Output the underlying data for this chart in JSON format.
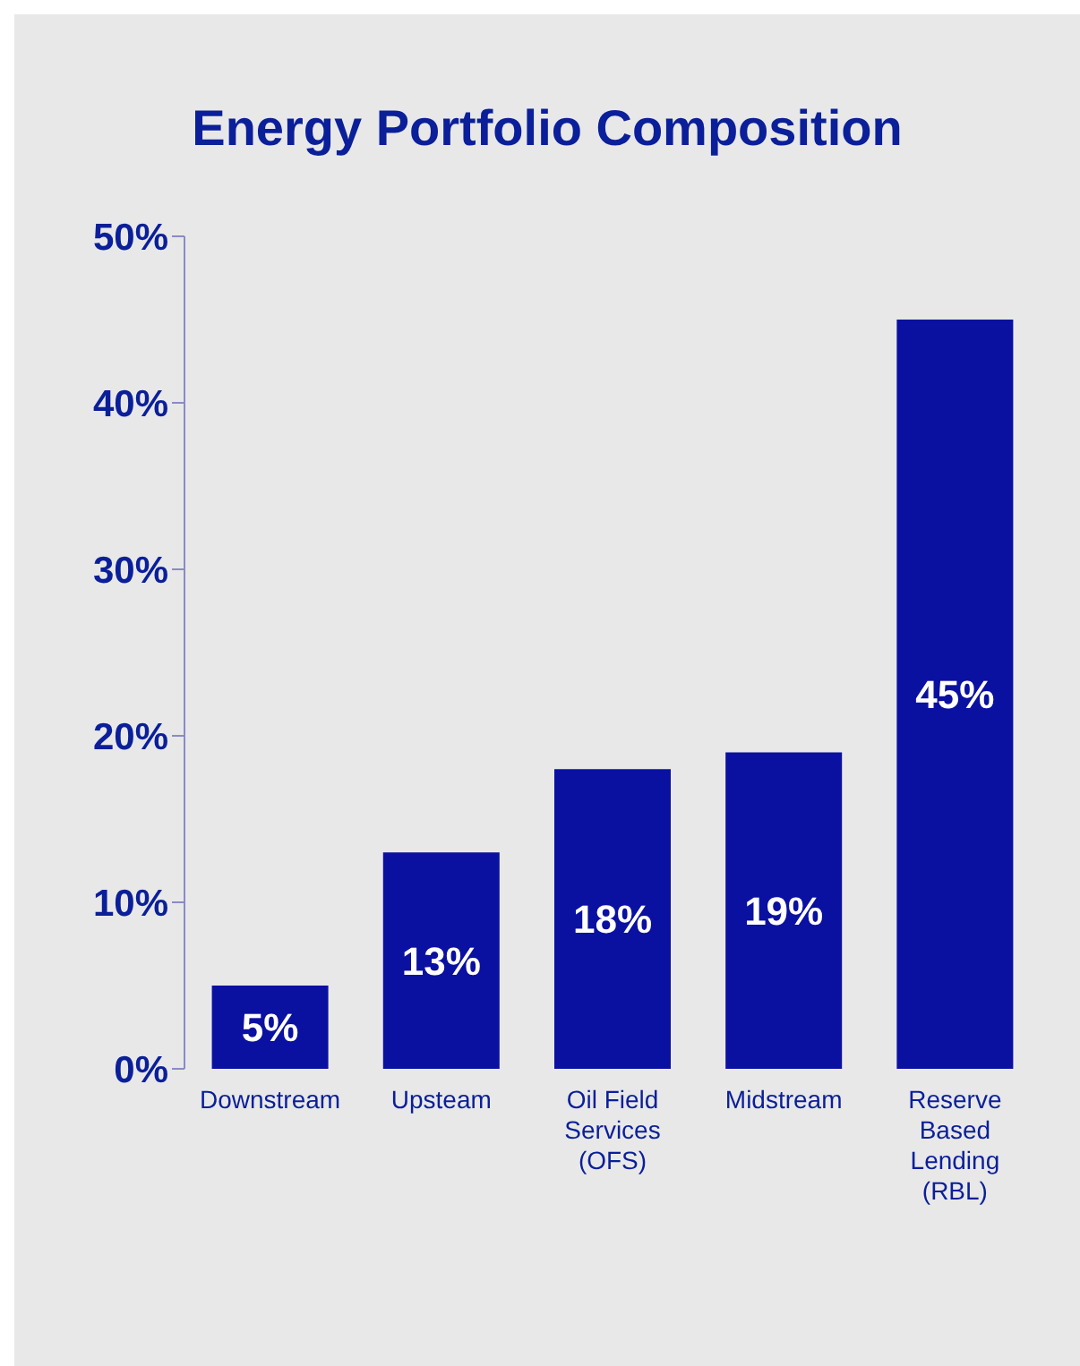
{
  "chart_data": {
    "type": "bar",
    "title": "Energy Portfolio Composition",
    "categories": [
      "Downstream",
      "Upsteam",
      "Oil Field Services (OFS)",
      "Midstream",
      "Reserve Based Lending (RBL)"
    ],
    "values": [
      5,
      13,
      18,
      19,
      45
    ],
    "value_labels": [
      "5%",
      "13%",
      "18%",
      "19%",
      "45%"
    ],
    "color": "#0a10a0",
    "ylim": [
      0,
      50
    ],
    "yticks": [
      {
        "value": 0,
        "label": "0%"
      },
      {
        "value": 10,
        "label": "10%"
      },
      {
        "value": 20,
        "label": "20%"
      },
      {
        "value": 30,
        "label": "30%"
      },
      {
        "value": 40,
        "label": "40%"
      },
      {
        "value": 50,
        "label": "50%"
      }
    ],
    "grid": false,
    "legend": false
  }
}
